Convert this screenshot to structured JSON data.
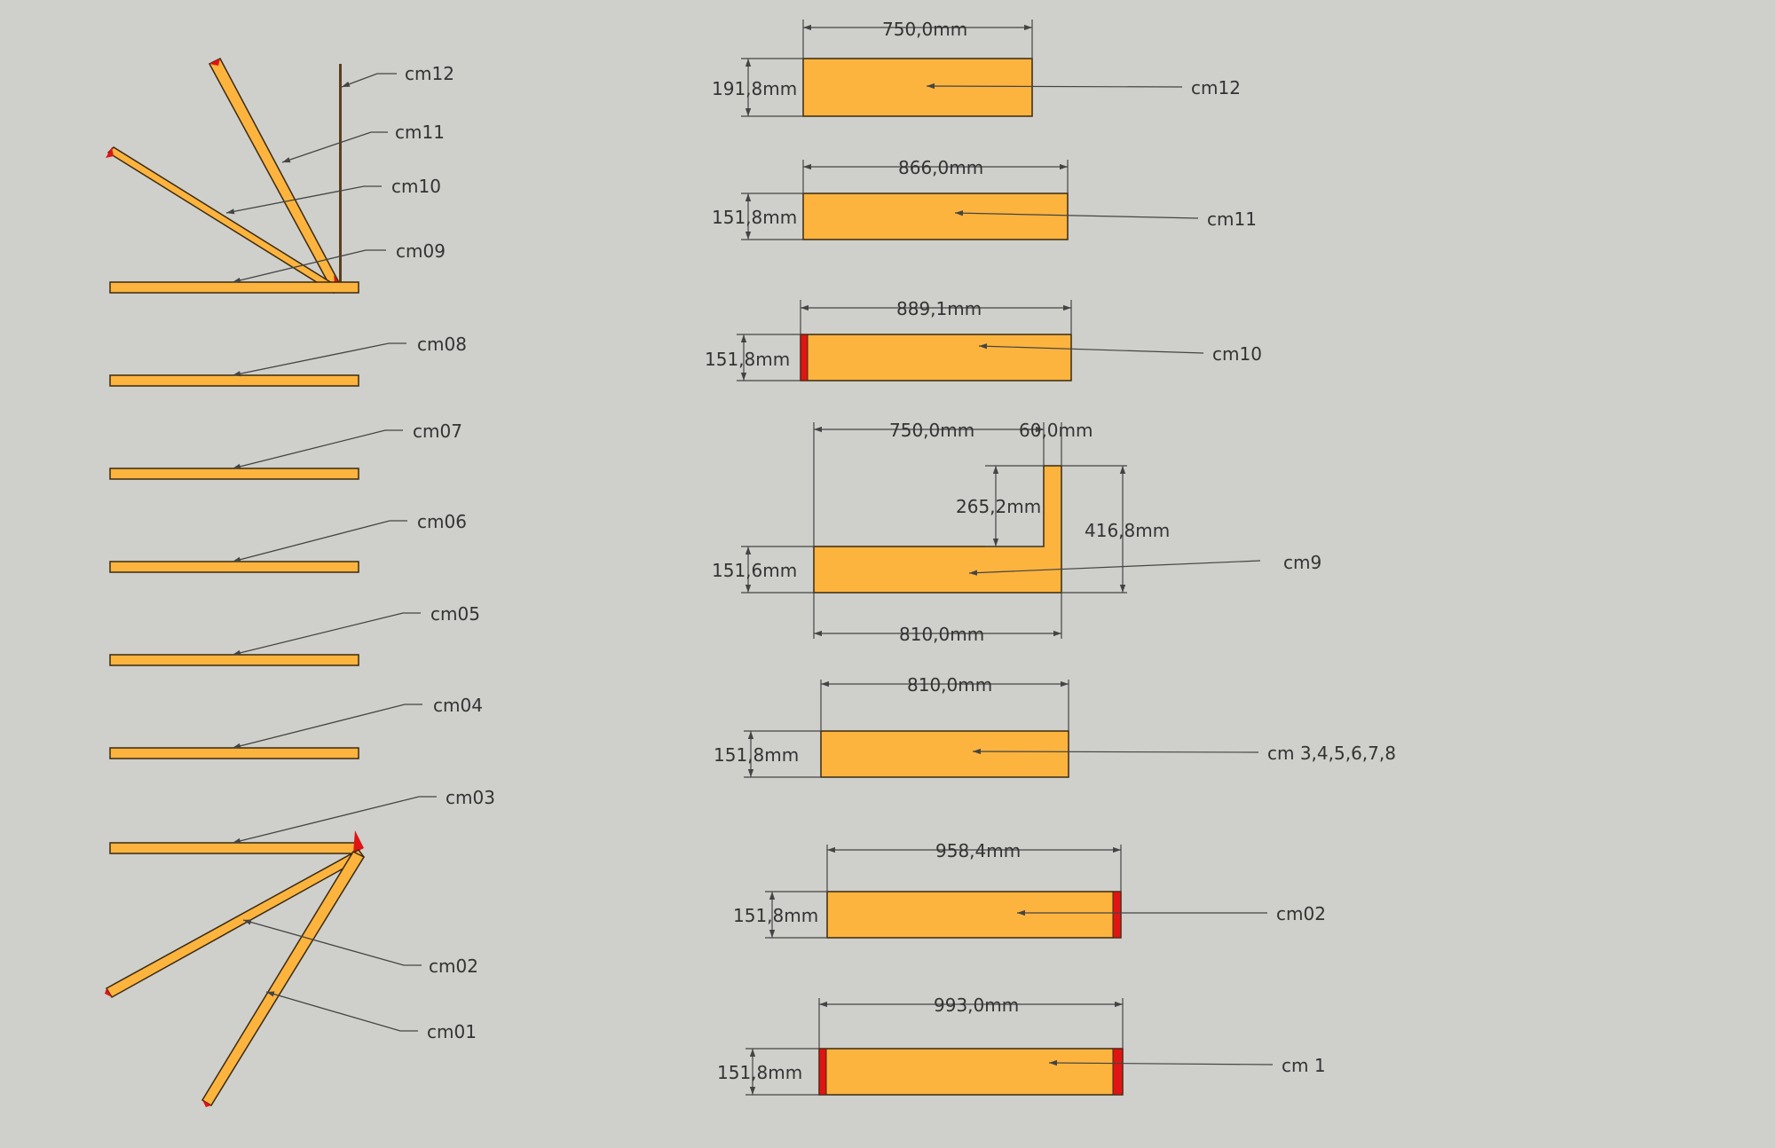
{
  "colors": {
    "background": "#cfcfcb",
    "board_fill": "#fcb43f",
    "board_stroke": "#3a2a10",
    "end_cut": "#e01414",
    "leader": "#444444",
    "text": "#333333"
  },
  "left_view": {
    "labels": {
      "cm12": "cm12",
      "cm11": "cm11",
      "cm10": "cm10",
      "cm09": "cm09",
      "cm08": "cm08",
      "cm07": "cm07",
      "cm06": "cm06",
      "cm05": "cm05",
      "cm04": "cm04",
      "cm03": "cm03",
      "cm02": "cm02",
      "cm01": "cm01"
    }
  },
  "parts": {
    "cm12": {
      "label": "cm12",
      "length": "750,0mm",
      "width": "191,8mm"
    },
    "cm11": {
      "label": "cm11",
      "length": "866,0mm",
      "width": "151,8mm"
    },
    "cm10": {
      "label": "cm10",
      "length": "889,1mm",
      "width": "151,8mm"
    },
    "cm9": {
      "label": "cm9",
      "top_length": "750,0mm",
      "top_tab": "60,0mm",
      "inner_height": "265,2mm",
      "total_height": "416,8mm",
      "width": "151,6mm",
      "bottom_length": "810,0mm"
    },
    "cm3_8": {
      "label": "cm 3,4,5,6,7,8",
      "length": "810,0mm",
      "width": "151,8mm"
    },
    "cm02": {
      "label": "cm02",
      "length": "958,4mm",
      "width": "151,8mm"
    },
    "cm1": {
      "label": "cm 1",
      "length": "993,0mm",
      "width": "151,8mm"
    }
  }
}
